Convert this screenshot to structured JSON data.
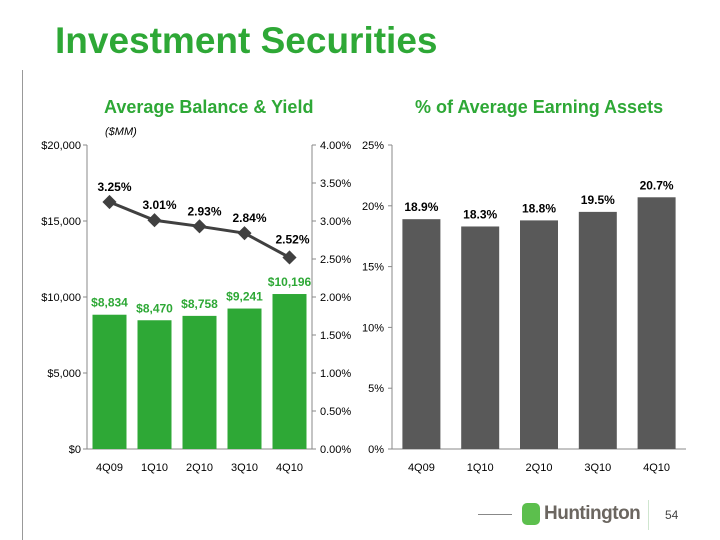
{
  "title": "Investment Securities",
  "page_number": "54",
  "logo_text": "Huntington",
  "colors": {
    "green": "#2ea836",
    "gray": "#595959",
    "line": "#404040"
  },
  "chart_data": [
    {
      "type": "bar+line",
      "title": "Average Balance & Yield",
      "unit_label": "($MM)",
      "categories": [
        "4Q09",
        "1Q10",
        "2Q10",
        "3Q10",
        "4Q10"
      ],
      "series": [
        {
          "name": "Average Balance",
          "axis": "left",
          "values": [
            8834,
            8470,
            8758,
            9241,
            10196
          ],
          "labels": [
            "$8,834",
            "$8,470",
            "$8,758",
            "$9,241",
            "$10,196"
          ]
        },
        {
          "name": "Yield",
          "axis": "right",
          "values": [
            3.25,
            3.01,
            2.93,
            2.84,
            2.52
          ],
          "labels": [
            "3.25%",
            "3.01%",
            "2.93%",
            "2.84%",
            "2.52%"
          ]
        }
      ],
      "ylim": [
        0,
        20000
      ],
      "yticks": [
        "$0",
        "$5,000",
        "$10,000",
        "$15,000",
        "$20,000"
      ],
      "y2lim": [
        0,
        4
      ],
      "y2ticks": [
        "0.00%",
        "0.50%",
        "1.00%",
        "1.50%",
        "2.00%",
        "2.50%",
        "3.00%",
        "3.50%",
        "4.00%"
      ]
    },
    {
      "type": "bar",
      "title": "% of Average Earning Assets",
      "categories": [
        "4Q09",
        "1Q10",
        "2Q10",
        "3Q10",
        "4Q10"
      ],
      "values": [
        18.9,
        18.3,
        18.8,
        19.5,
        20.7
      ],
      "labels": [
        "18.9%",
        "18.3%",
        "18.8%",
        "19.5%",
        "20.7%"
      ],
      "ylim": [
        0,
        25
      ],
      "yticks": [
        "0%",
        "5%",
        "10%",
        "15%",
        "20%",
        "25%"
      ]
    }
  ]
}
